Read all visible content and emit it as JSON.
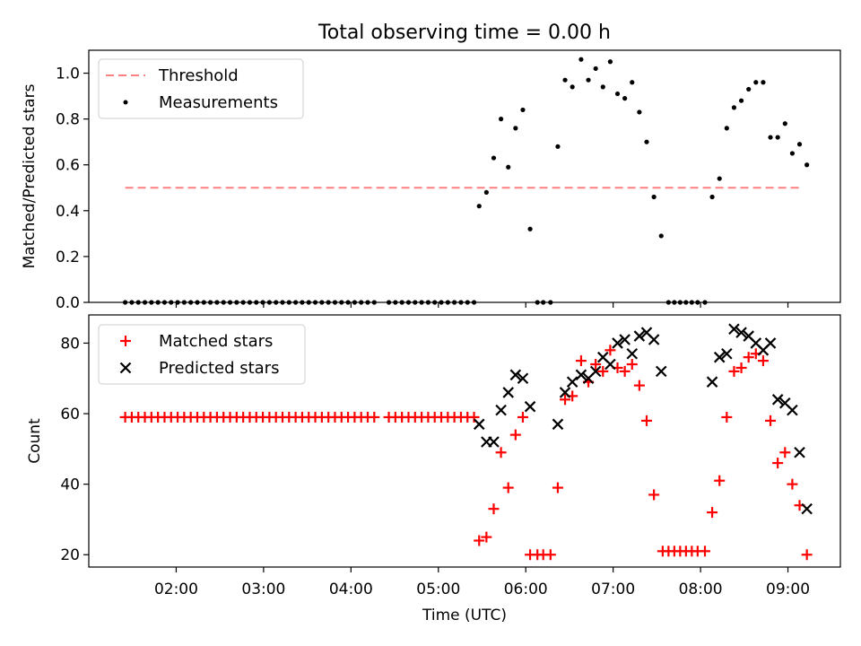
{
  "title": "Total observing time = 0.00 h",
  "colors": {
    "threshold": "#ff8080",
    "measurement": "#000000",
    "matched": "#ff0000",
    "predicted": "#000000",
    "axes": "#000000",
    "background": "#ffffff"
  },
  "xaxis": {
    "label": "Time (UTC)",
    "ticks": [
      {
        "t": 2,
        "label": "02:00"
      },
      {
        "t": 3,
        "label": "03:00"
      },
      {
        "t": 4,
        "label": "04:00"
      },
      {
        "t": 5,
        "label": "05:00"
      },
      {
        "t": 6,
        "label": "06:00"
      },
      {
        "t": 7,
        "label": "07:00"
      },
      {
        "t": 8,
        "label": "08:00"
      },
      {
        "t": 9,
        "label": "09:00"
      }
    ]
  },
  "chart_data": [
    {
      "type": "scatter",
      "title": "Total observing time = 0.00 h",
      "ylabel": "Matched/Predicted stars",
      "xlim": [
        1.0,
        9.6
      ],
      "ylim": [
        0.0,
        1.1
      ],
      "yticks": [
        {
          "v": 0.0,
          "label": "0.0"
        },
        {
          "v": 0.2,
          "label": "0.2"
        },
        {
          "v": 0.4,
          "label": "0.4"
        },
        {
          "v": 0.6,
          "label": "0.6"
        },
        {
          "v": 0.8,
          "label": "0.8"
        },
        {
          "v": 1.0,
          "label": "1.0"
        }
      ],
      "legend": {
        "position": "upper-left",
        "entries": [
          "Threshold",
          "Measurements"
        ]
      },
      "threshold": {
        "name": "Threshold",
        "y": 0.5,
        "x": [
          1.4167,
          9.15
        ]
      },
      "series": [
        {
          "name": "Measurements",
          "points": [
            [
              1.4167,
              0
            ],
            [
              1.4917,
              0
            ],
            [
              1.5667,
              0
            ],
            [
              1.6417,
              0
            ],
            [
              1.7167,
              0
            ],
            [
              1.7917,
              0
            ],
            [
              1.8667,
              0
            ],
            [
              1.9417,
              0
            ],
            [
              2.0167,
              0
            ],
            [
              2.0917,
              0
            ],
            [
              2.1667,
              0
            ],
            [
              2.2417,
              0
            ],
            [
              2.3167,
              0
            ],
            [
              2.3917,
              0
            ],
            [
              2.4667,
              0
            ],
            [
              2.5417,
              0
            ],
            [
              2.6167,
              0
            ],
            [
              2.6917,
              0
            ],
            [
              2.7667,
              0
            ],
            [
              2.8417,
              0
            ],
            [
              2.9167,
              0
            ],
            [
              2.9917,
              0
            ],
            [
              3.0667,
              0
            ],
            [
              3.1417,
              0
            ],
            [
              3.2167,
              0
            ],
            [
              3.2917,
              0
            ],
            [
              3.3667,
              0
            ],
            [
              3.4417,
              0
            ],
            [
              3.5167,
              0
            ],
            [
              3.5917,
              0
            ],
            [
              3.6667,
              0
            ],
            [
              3.7417,
              0
            ],
            [
              3.8167,
              0
            ],
            [
              3.8917,
              0
            ],
            [
              3.9667,
              0
            ],
            [
              4.0417,
              0
            ],
            [
              4.1167,
              0
            ],
            [
              4.1917,
              0
            ],
            [
              4.2667,
              0
            ],
            [
              4.4333,
              0
            ],
            [
              4.5083,
              0
            ],
            [
              4.5833,
              0
            ],
            [
              4.6583,
              0
            ],
            [
              4.7333,
              0
            ],
            [
              4.8083,
              0
            ],
            [
              4.8833,
              0
            ],
            [
              4.9583,
              0
            ],
            [
              5.0333,
              0
            ],
            [
              5.1083,
              0
            ],
            [
              5.1833,
              0
            ],
            [
              5.2583,
              0
            ],
            [
              5.3333,
              0
            ],
            [
              5.4083,
              0
            ],
            [
              5.4667,
              0.42
            ],
            [
              5.55,
              0.48
            ],
            [
              5.6333,
              0.63
            ],
            [
              5.7167,
              0.8
            ],
            [
              5.8,
              0.59
            ],
            [
              5.8833,
              0.76
            ],
            [
              5.9667,
              0.84
            ],
            [
              6.05,
              0.32
            ],
            [
              6.1333,
              0
            ],
            [
              6.2,
              0
            ],
            [
              6.2833,
              0
            ],
            [
              6.3667,
              0.68
            ],
            [
              6.45,
              0.97
            ],
            [
              6.5333,
              0.94
            ],
            [
              6.6333,
              1.06
            ],
            [
              6.7167,
              0.97
            ],
            [
              6.8,
              1.02
            ],
            [
              6.8833,
              0.94
            ],
            [
              6.9667,
              1.05
            ],
            [
              7.05,
              0.91
            ],
            [
              7.1333,
              0.89
            ],
            [
              7.2167,
              0.96
            ],
            [
              7.3,
              0.83
            ],
            [
              7.3833,
              0.7
            ],
            [
              7.4667,
              0.46
            ],
            [
              7.55,
              0.29
            ],
            [
              7.6333,
              0
            ],
            [
              7.7,
              0
            ],
            [
              7.7667,
              0
            ],
            [
              7.8333,
              0
            ],
            [
              7.9,
              0
            ],
            [
              7.9667,
              0
            ],
            [
              8.05,
              0
            ],
            [
              8.1333,
              0.46
            ],
            [
              8.2167,
              0.54
            ],
            [
              8.3,
              0.76
            ],
            [
              8.3833,
              0.85
            ],
            [
              8.4667,
              0.88
            ],
            [
              8.55,
              0.93
            ],
            [
              8.6333,
              0.96
            ],
            [
              8.7167,
              0.96
            ],
            [
              8.8,
              0.72
            ],
            [
              8.8833,
              0.72
            ],
            [
              8.9667,
              0.78
            ],
            [
              9.05,
              0.65
            ],
            [
              9.1333,
              0.69
            ],
            [
              9.2167,
              0.6
            ]
          ]
        }
      ]
    },
    {
      "type": "scatter",
      "xlabel": "Time (UTC)",
      "ylabel": "Count",
      "xlim": [
        1.0,
        9.6
      ],
      "ylim": [
        16.5,
        88
      ],
      "yticks": [
        {
          "v": 20,
          "label": "20"
        },
        {
          "v": 40,
          "label": "40"
        },
        {
          "v": 60,
          "label": "60"
        },
        {
          "v": 80,
          "label": "80"
        }
      ],
      "legend": {
        "position": "upper-left",
        "entries": [
          "Matched stars",
          "Predicted stars"
        ]
      },
      "series": [
        {
          "name": "Matched stars",
          "marker": "plus",
          "points": [
            [
              1.4167,
              59
            ],
            [
              1.4917,
              59
            ],
            [
              1.5667,
              59
            ],
            [
              1.6417,
              59
            ],
            [
              1.7167,
              59
            ],
            [
              1.7917,
              59
            ],
            [
              1.8667,
              59
            ],
            [
              1.9417,
              59
            ],
            [
              2.0167,
              59
            ],
            [
              2.0917,
              59
            ],
            [
              2.1667,
              59
            ],
            [
              2.2417,
              59
            ],
            [
              2.3167,
              59
            ],
            [
              2.3917,
              59
            ],
            [
              2.4667,
              59
            ],
            [
              2.5417,
              59
            ],
            [
              2.6167,
              59
            ],
            [
              2.6917,
              59
            ],
            [
              2.7667,
              59
            ],
            [
              2.8417,
              59
            ],
            [
              2.9167,
              59
            ],
            [
              2.9917,
              59
            ],
            [
              3.0667,
              59
            ],
            [
              3.1417,
              59
            ],
            [
              3.2167,
              59
            ],
            [
              3.2917,
              59
            ],
            [
              3.3667,
              59
            ],
            [
              3.4417,
              59
            ],
            [
              3.5167,
              59
            ],
            [
              3.5917,
              59
            ],
            [
              3.6667,
              59
            ],
            [
              3.7417,
              59
            ],
            [
              3.8167,
              59
            ],
            [
              3.8917,
              59
            ],
            [
              3.9667,
              59
            ],
            [
              4.0417,
              59
            ],
            [
              4.1167,
              59
            ],
            [
              4.1917,
              59
            ],
            [
              4.2667,
              59
            ],
            [
              4.4333,
              59
            ],
            [
              4.5083,
              59
            ],
            [
              4.5833,
              59
            ],
            [
              4.6583,
              59
            ],
            [
              4.7333,
              59
            ],
            [
              4.8083,
              59
            ],
            [
              4.8833,
              59
            ],
            [
              4.9583,
              59
            ],
            [
              5.0333,
              59
            ],
            [
              5.1083,
              59
            ],
            [
              5.1833,
              59
            ],
            [
              5.2583,
              59
            ],
            [
              5.3333,
              59
            ],
            [
              5.4083,
              59
            ],
            [
              5.4667,
              24
            ],
            [
              5.55,
              25
            ],
            [
              5.6333,
              33
            ],
            [
              5.7167,
              49
            ],
            [
              5.8,
              39
            ],
            [
              5.8833,
              54
            ],
            [
              5.9667,
              59
            ],
            [
              6.05,
              20
            ],
            [
              6.1333,
              20
            ],
            [
              6.2,
              20
            ],
            [
              6.2833,
              20
            ],
            [
              6.3667,
              39
            ],
            [
              6.45,
              64
            ],
            [
              6.5333,
              65
            ],
            [
              6.6333,
              75
            ],
            [
              6.7167,
              69
            ],
            [
              6.8,
              74
            ],
            [
              6.8833,
              72
            ],
            [
              6.9667,
              78
            ],
            [
              7.05,
              73
            ],
            [
              7.1333,
              72
            ],
            [
              7.2167,
              74
            ],
            [
              7.3,
              68
            ],
            [
              7.3833,
              58
            ],
            [
              7.4667,
              37
            ],
            [
              7.5667,
              21
            ],
            [
              7.6333,
              21
            ],
            [
              7.7,
              21
            ],
            [
              7.7667,
              21
            ],
            [
              7.8333,
              21
            ],
            [
              7.9,
              21
            ],
            [
              7.9667,
              21
            ],
            [
              8.05,
              21
            ],
            [
              8.1333,
              32
            ],
            [
              8.2167,
              41
            ],
            [
              8.3,
              59
            ],
            [
              8.3833,
              72
            ],
            [
              8.4667,
              73
            ],
            [
              8.55,
              76
            ],
            [
              8.6333,
              77
            ],
            [
              8.7167,
              75
            ],
            [
              8.8,
              58
            ],
            [
              8.8833,
              46
            ],
            [
              8.9667,
              49
            ],
            [
              9.05,
              40
            ],
            [
              9.1333,
              34
            ],
            [
              9.2167,
              20
            ]
          ]
        },
        {
          "name": "Predicted stars",
          "marker": "x",
          "points": [
            [
              5.4667,
              57
            ],
            [
              5.55,
              52
            ],
            [
              5.6333,
              52
            ],
            [
              5.7167,
              61
            ],
            [
              5.8,
              66
            ],
            [
              5.8833,
              71
            ],
            [
              5.9667,
              70
            ],
            [
              6.05,
              62
            ],
            [
              6.3667,
              57
            ],
            [
              6.45,
              66
            ],
            [
              6.5333,
              69
            ],
            [
              6.6333,
              71
            ],
            [
              6.7167,
              70
            ],
            [
              6.8,
              72
            ],
            [
              6.8833,
              76
            ],
            [
              6.9667,
              74
            ],
            [
              7.05,
              80
            ],
            [
              7.1333,
              81
            ],
            [
              7.2167,
              77
            ],
            [
              7.3,
              82
            ],
            [
              7.3833,
              83
            ],
            [
              7.4667,
              81
            ],
            [
              7.55,
              72
            ],
            [
              8.1333,
              69
            ],
            [
              8.2167,
              76
            ],
            [
              8.3,
              77
            ],
            [
              8.3833,
              84
            ],
            [
              8.4667,
              83
            ],
            [
              8.55,
              82
            ],
            [
              8.6333,
              80
            ],
            [
              8.7167,
              78
            ],
            [
              8.8,
              80
            ],
            [
              8.8833,
              64
            ],
            [
              8.9667,
              63
            ],
            [
              9.05,
              61
            ],
            [
              9.1333,
              49
            ],
            [
              9.2167,
              33
            ]
          ]
        }
      ]
    }
  ]
}
